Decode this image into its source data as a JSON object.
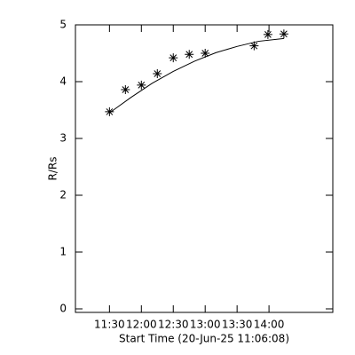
{
  "chart_data": {
    "type": "scatter",
    "xlabel": "Start Time (20-Jun-25 11:06:08)",
    "ylabel": "R/Rs",
    "x": [
      690,
      705,
      720,
      735,
      750,
      765,
      780,
      826,
      839,
      854
    ],
    "values": [
      3.47,
      3.86,
      3.94,
      4.14,
      4.42,
      4.48,
      4.5,
      4.63,
      4.83,
      4.84
    ],
    "fit": {
      "x": [
        690,
        710,
        730,
        750,
        770,
        790,
        810,
        830,
        854
      ],
      "values": [
        3.45,
        3.72,
        3.97,
        4.18,
        4.36,
        4.51,
        4.62,
        4.71,
        4.76
      ]
    },
    "color": "#000000",
    "xlim": [
      658,
      900
    ],
    "xticks": [
      {
        "value": 690,
        "label": "11:30"
      },
      {
        "value": 720,
        "label": "12:00"
      },
      {
        "value": 750,
        "label": "12:30"
      },
      {
        "value": 780,
        "label": "13:00"
      },
      {
        "value": 810,
        "label": "13:30"
      },
      {
        "value": 840,
        "label": "14:00"
      }
    ],
    "ylim": [
      0,
      5
    ],
    "yticks": [
      0,
      1,
      2,
      3,
      4,
      5
    ]
  }
}
